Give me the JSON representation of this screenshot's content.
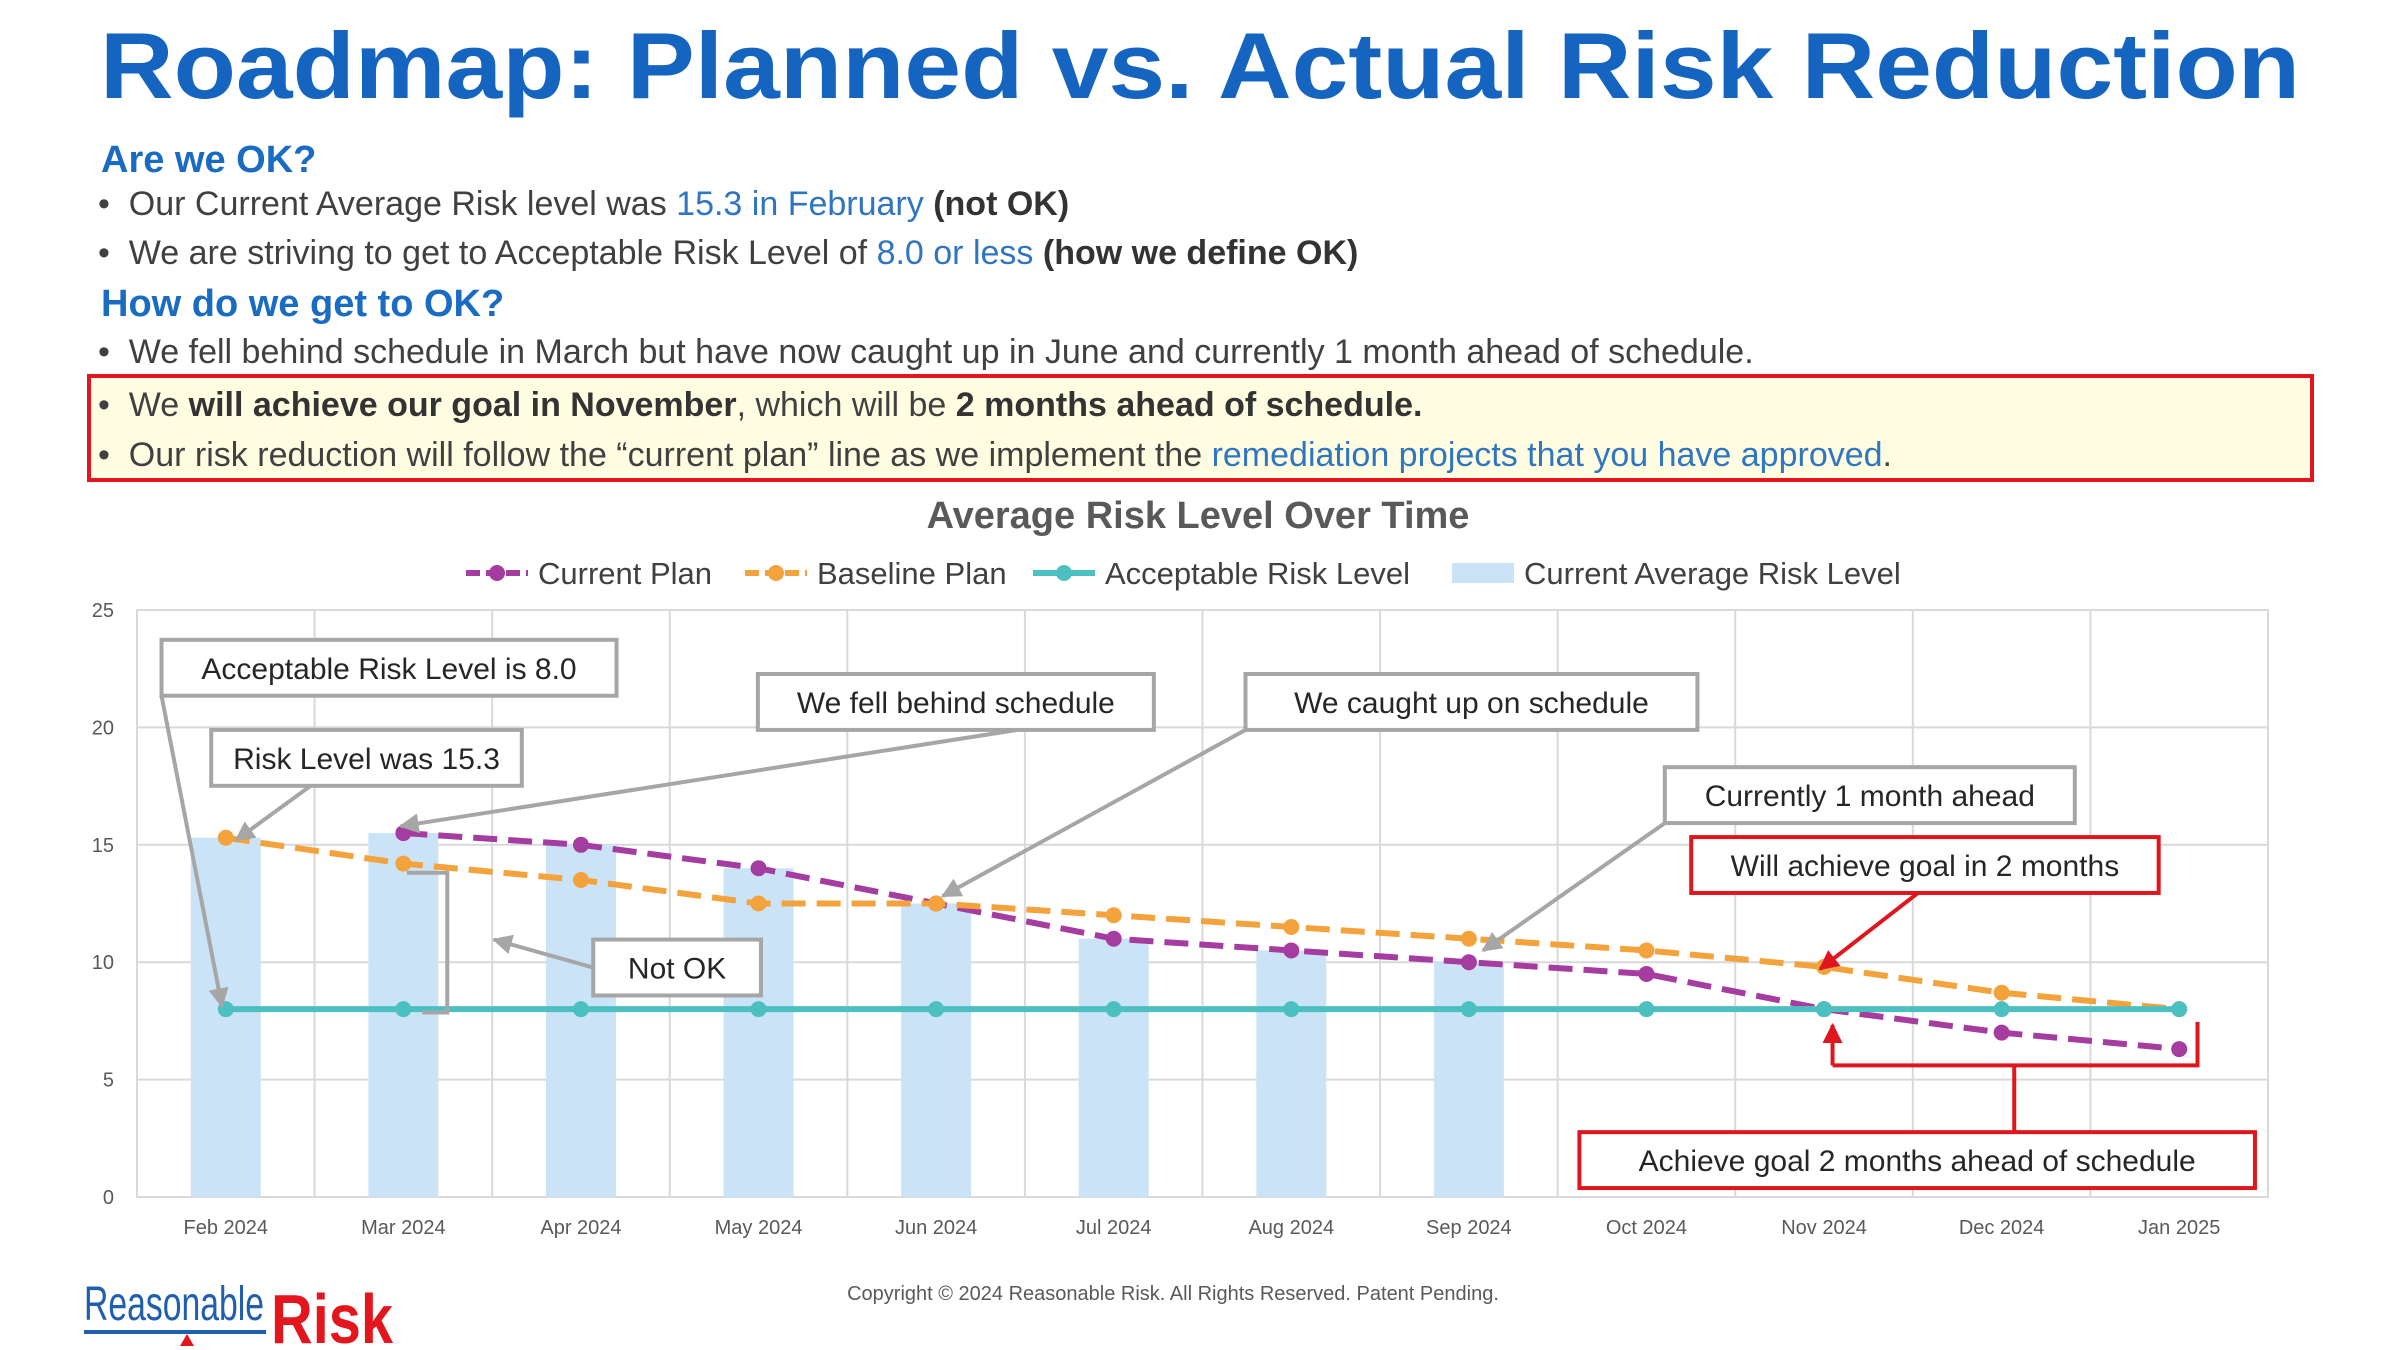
{
  "slide": {
    "title": "Roadmap: Planned vs. Actual Risk Reduction",
    "sections": [
      {
        "heading": "Are we OK?",
        "bullets": [
          [
            "Our Current Average Risk level was ",
            "15.3 in February",
            " (not OK)"
          ],
          [
            "We are striving to get to Acceptable Risk Level of ",
            "8.0 or less",
            " (how we define OK)"
          ]
        ]
      },
      {
        "heading": "How do we get to OK?",
        "bullets": [
          [
            "We fell behind schedule in March but have now caught up in June and currently 1 month ahead of schedule."
          ],
          [
            "We ",
            "will achieve our goal in November",
            ", which will be ",
            "2 months ahead of schedule."
          ],
          [
            "Our risk reduction will follow the “current plan” line as we implement the ",
            "remediation projects that you have approved",
            "."
          ]
        ]
      }
    ],
    "copyright": "Copyright © 2024 Reasonable Risk. All Rights Reserved. Patent Pending.",
    "logo": [
      "Reasonable",
      "Risk"
    ]
  },
  "chart_data": {
    "type": "combo",
    "title": "Average Risk Level Over Time",
    "categories": [
      "Feb 2024",
      "Mar 2024",
      "Apr 2024",
      "May 2024",
      "Jun 2024",
      "Jul 2024",
      "Aug 2024",
      "Sep 2024",
      "Oct 2024",
      "Nov 2024",
      "Dec 2024",
      "Jan 2025"
    ],
    "series": [
      {
        "name": "Current Plan",
        "type": "line",
        "color": "#a53c9f",
        "dashed": true,
        "values": [
          null,
          15.5,
          15,
          14,
          12.5,
          11,
          10.5,
          10,
          9.5,
          8,
          7,
          6.3
        ]
      },
      {
        "name": "Baseline Plan",
        "type": "line",
        "color": "#f4a23c",
        "dashed": true,
        "values": [
          15.3,
          14.2,
          13.5,
          12.5,
          12.5,
          12,
          11.5,
          11,
          10.5,
          9.8,
          8.7,
          8
        ]
      },
      {
        "name": "Acceptable Risk Level",
        "type": "line",
        "color": "#4cc0c0",
        "dashed": false,
        "values": [
          8,
          8,
          8,
          8,
          8,
          8,
          8,
          8,
          8,
          8,
          8,
          8
        ]
      },
      {
        "name": "Current Average Risk Level",
        "type": "bar",
        "color": "#cbe3f7",
        "values": [
          15.3,
          15.5,
          15,
          14,
          12.5,
          11,
          10.5,
          10,
          null,
          null,
          null,
          null
        ]
      }
    ],
    "ylim": [
      0,
      25
    ],
    "yticks": [
      0,
      5,
      10,
      15,
      20,
      25
    ],
    "grid": true,
    "legend": "top",
    "annotations": [
      "Acceptable Risk Level is 8.0",
      "Risk Level was 15.3",
      "We fell behind schedule",
      "We caught up on schedule",
      "Currently 1 month ahead",
      "Will achieve goal in 2 months",
      "Not OK",
      "Achieve goal 2 months ahead of schedule"
    ]
  }
}
